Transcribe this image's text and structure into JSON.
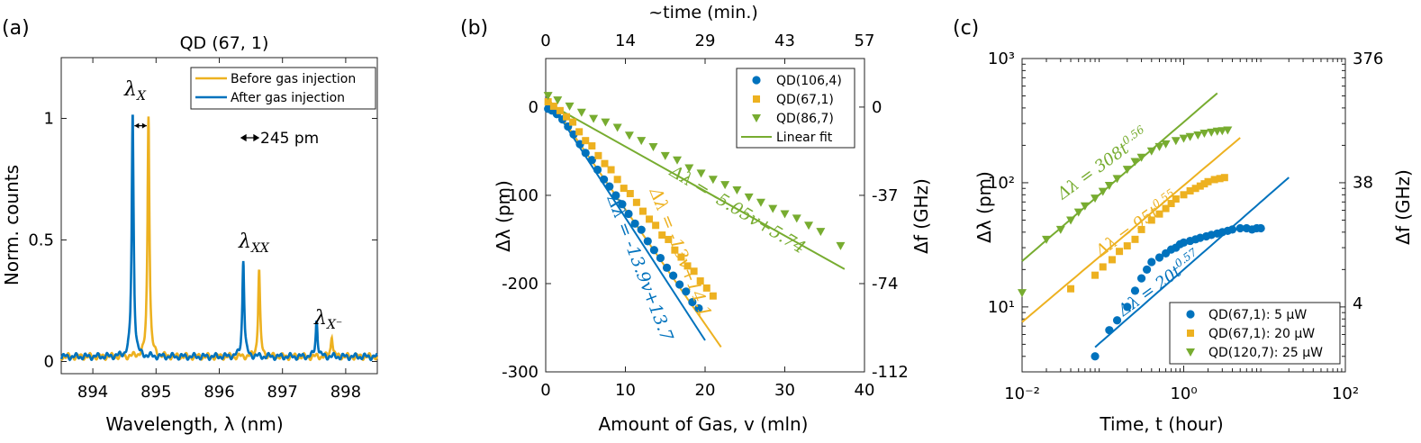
{
  "colors": {
    "blue": "#0072BD",
    "orange": "#EDB120",
    "green": "#77AC30"
  },
  "chart_data": [
    {
      "panel_label": "(a)",
      "type": "line",
      "title": "QD (67, 1)",
      "xlabel": "Wavelength, λ (nm)",
      "ylabel": "Norm. counts",
      "xlim": [
        893.5,
        898.5
      ],
      "ylim": [
        -0.05,
        1.25
      ],
      "xticks": [
        "894",
        "895",
        "896",
        "897",
        "898"
      ],
      "yticks": [
        "0",
        "0.5",
        "1"
      ],
      "legend_position": "top-right",
      "series": [
        {
          "name": "Before gas injection",
          "color": "orange",
          "peaks": [
            {
              "x": 894.88,
              "y": 1.0
            },
            {
              "x": 896.63,
              "y": 0.36
            },
            {
              "x": 897.78,
              "y": 0.09
            }
          ]
        },
        {
          "name": "After gas injection",
          "color": "blue",
          "peaks": [
            {
              "x": 894.63,
              "y": 1.0
            },
            {
              "x": 896.38,
              "y": 0.4
            },
            {
              "x": 897.54,
              "y": 0.15
            }
          ]
        }
      ],
      "annotations": {
        "lx": "λ",
        "lx_sub": "X",
        "lxx": "λ",
        "lxx_sub": "XX",
        "lxm": "λ",
        "lxm_sub": "X⁻",
        "scale": "245 pm"
      }
    },
    {
      "panel_label": "(b)",
      "type": "scatter",
      "xlabel": "Amount of Gas, v (mln)",
      "ylabel": "Δλ (pm)",
      "top_xlabel": "~time (min.)",
      "right_ylabel": "Δf (GHz)",
      "xlim": [
        0,
        40
      ],
      "ylim": [
        -300,
        55
      ],
      "xticks": [
        "0",
        "10",
        "20",
        "30",
        "40"
      ],
      "yticks": [
        "0",
        "-100",
        "-200",
        "-300"
      ],
      "top_xticks": [
        "0",
        "14",
        "29",
        "43",
        "57"
      ],
      "right_yticks": [
        "0",
        "-37",
        "-74",
        "-112"
      ],
      "legend_position": "top-right",
      "series": [
        {
          "name": "QD(106,4)",
          "color": "blue",
          "marker": "circle",
          "x": [
            0.3,
            0.8,
            1.4,
            2.1,
            2.8,
            3.5,
            4.3,
            5.0,
            5.8,
            6.5,
            7.3,
            8.0,
            8.8,
            9.6,
            10.4,
            11.2,
            12.0,
            12.8,
            13.6,
            14.4,
            15.2,
            16.0,
            16.8,
            17.6,
            18.4,
            19.2
          ],
          "y": [
            -2,
            -4,
            -8,
            -14,
            -22,
            -31,
            -42,
            -52,
            -60,
            -71,
            -82,
            -90,
            -100,
            -110,
            -121,
            -132,
            -139,
            -152,
            -162,
            -171,
            -182,
            -191,
            -201,
            -209,
            -221,
            -228
          ]
        },
        {
          "name": "QD(67,1)",
          "color": "orange",
          "marker": "square",
          "x": [
            0.3,
            1.0,
            1.8,
            2.6,
            3.4,
            4.2,
            5.0,
            5.8,
            6.6,
            7.4,
            8.2,
            9.0,
            9.8,
            10.6,
            11.4,
            12.2,
            13.0,
            13.8,
            14.6,
            15.4,
            16.2,
            17.0,
            17.8,
            18.6,
            19.4,
            20.2,
            21.0
          ],
          "y": [
            6,
            1,
            -4,
            -11,
            -17,
            -28,
            -38,
            -44,
            -55,
            -64,
            -71,
            -82,
            -92,
            -98,
            -108,
            -118,
            -127,
            -134,
            -145,
            -150,
            -162,
            -170,
            -180,
            -186,
            -197,
            -205,
            -214
          ]
        },
        {
          "name": "QD(86,7)",
          "color": "green",
          "marker": "triangle-down",
          "x": [
            0.3,
            1.5,
            3.0,
            4.5,
            6.0,
            7.5,
            9.0,
            10.5,
            12.0,
            13.5,
            15.0,
            16.5,
            18.0,
            19.5,
            21.0,
            22.5,
            24.0,
            25.5,
            27.0,
            28.5,
            30.0,
            31.5,
            33.0,
            34.5,
            37.0
          ],
          "y": [
            13,
            8,
            1,
            -6,
            -13,
            -17,
            -23,
            -32,
            -38,
            -45,
            -55,
            -60,
            -69,
            -75,
            -82,
            -88,
            -94,
            -102,
            -108,
            -115,
            -121,
            -126,
            -134,
            -141,
            -157
          ]
        }
      ],
      "fits": [
        {
          "name": "Linear fit",
          "color": "blue",
          "slope": -13.9,
          "intercept": 13.7,
          "x_range": [
            0,
            20
          ]
        },
        {
          "name": "Linear fit",
          "color": "orange",
          "slope": -13,
          "intercept": 14.1,
          "x_range": [
            0,
            22
          ]
        },
        {
          "name": "Linear fit",
          "color": "green",
          "slope": -5.05,
          "intercept": 5.74,
          "x_range": [
            0,
            37.5
          ]
        }
      ],
      "legend_fit_label": "Linear fit",
      "annotations": {
        "blue_eq": "Δλ = -13.9v+13.7",
        "orange_eq": "Δλ = -13v+14.1",
        "green_eq": "Δλ = -5.05v+5.74"
      }
    },
    {
      "panel_label": "(c)",
      "type": "scatter",
      "xscale": "log",
      "yscale": "log",
      "xlabel": "Time, t (hour)",
      "ylabel": "Δλ (pm)",
      "right_ylabel": "Δf (GHz)",
      "xlim": [
        0.01,
        100
      ],
      "ylim": [
        3,
        1000
      ],
      "xticks": [
        "10⁻²",
        "10⁰",
        "10²"
      ],
      "yticks": [
        "10¹",
        "10²",
        "10³"
      ],
      "right_yticks": [
        "4",
        "38",
        "376"
      ],
      "legend_position": "bottom-right",
      "series": [
        {
          "name": "QD(67,1): 5 μW",
          "color": "blue",
          "marker": "circle",
          "x": [
            0.08,
            0.12,
            0.15,
            0.2,
            0.25,
            0.3,
            0.35,
            0.4,
            0.5,
            0.6,
            0.7,
            0.8,
            0.9,
            1.0,
            1.2,
            1.4,
            1.6,
            1.9,
            2.2,
            2.6,
            3.0,
            3.5,
            4.0,
            5.0,
            6.0,
            7.0,
            8.0,
            9.0
          ],
          "y": [
            4,
            6.5,
            7.8,
            10,
            13.5,
            17,
            20,
            23,
            25,
            27,
            29,
            30,
            32,
            33,
            34,
            35,
            36,
            37,
            38,
            39,
            40,
            41,
            42,
            43,
            43,
            42,
            43,
            43
          ]
        },
        {
          "name": "QD(67,1): 20 μW",
          "color": "orange",
          "marker": "square",
          "x": [
            0.04,
            0.08,
            0.1,
            0.13,
            0.16,
            0.2,
            0.25,
            0.3,
            0.4,
            0.5,
            0.6,
            0.7,
            0.8,
            1.0,
            1.2,
            1.4,
            1.6,
            1.8,
            2.0,
            2.4,
            2.8,
            3.2
          ],
          "y": [
            14,
            18,
            21,
            24,
            28,
            31,
            35,
            42,
            50,
            56,
            62,
            68,
            74,
            80,
            86,
            90,
            94,
            98,
            102,
            106,
            108,
            110
          ]
        },
        {
          "name": "QD(120,7): 25 μW",
          "color": "green",
          "marker": "triangle-down",
          "x": [
            0.01,
            0.02,
            0.03,
            0.04,
            0.05,
            0.06,
            0.08,
            0.1,
            0.12,
            0.15,
            0.2,
            0.25,
            0.3,
            0.4,
            0.5,
            0.6,
            0.8,
            1.0,
            1.2,
            1.5,
            1.8,
            2.2,
            2.6,
            3.0,
            3.5
          ],
          "y": [
            13,
            35,
            42,
            50,
            58,
            65,
            75,
            85,
            95,
            108,
            128,
            148,
            160,
            180,
            195,
            205,
            218,
            228,
            235,
            242,
            250,
            255,
            260,
            262,
            265
          ]
        }
      ],
      "fits": [
        {
          "color": "blue",
          "a": 20,
          "b": 0.57,
          "x_range": [
            0.08,
            20
          ]
        },
        {
          "color": "orange",
          "a": 95,
          "b": 0.55,
          "x_range": [
            0.01,
            5
          ]
        },
        {
          "color": "green",
          "a": 308,
          "b": 0.56,
          "x_range": [
            0.01,
            3
          ]
        }
      ],
      "annotations": {
        "blue_eq": "Δλ = 20t",
        "blue_exp": "0.57",
        "orange_eq": "Δλ = 95t",
        "orange_exp": "0.55",
        "green_eq": "Δλ = 308t",
        "green_exp": "0.56"
      }
    }
  ]
}
